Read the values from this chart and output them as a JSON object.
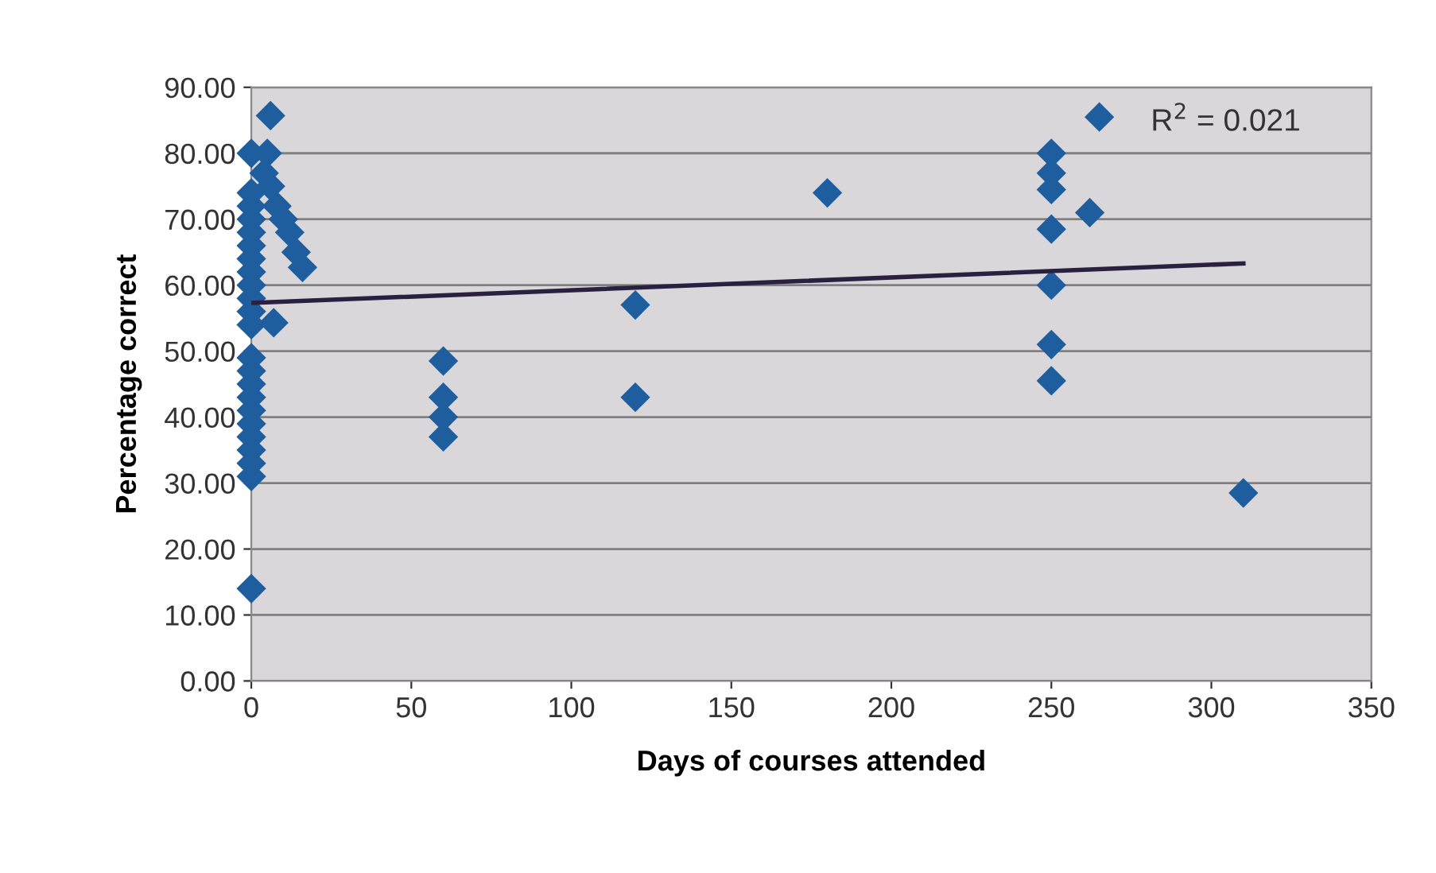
{
  "chart_data": {
    "type": "scatter",
    "xlabel": "Days of courses attended",
    "ylabel": "Percentage correct",
    "xlim": [
      0,
      350
    ],
    "xticks": [
      0,
      50,
      100,
      150,
      200,
      250,
      300,
      350
    ],
    "ylim": [
      0,
      90
    ],
    "yticks": [
      {
        "value": 0,
        "label": "0.00"
      },
      {
        "value": 10,
        "label": "10.00"
      },
      {
        "value": 20,
        "label": "20.00"
      },
      {
        "value": 30,
        "label": "30.00"
      },
      {
        "value": 40,
        "label": "40.00"
      },
      {
        "value": 50,
        "label": "50.00"
      },
      {
        "value": 60,
        "label": "60.00"
      },
      {
        "value": 70,
        "label": "70.00"
      },
      {
        "value": 80,
        "label": "80.00"
      },
      {
        "value": 90,
        "label": "90.00"
      }
    ],
    "grid": "y",
    "legend": false,
    "annotations": [
      "R$^{2}$ = 0.021"
    ],
    "series": [
      {
        "marker": "diamond",
        "color": "#1f5e9e",
        "x": [
          0,
          0,
          0,
          0,
          0,
          0,
          0,
          0,
          0,
          0,
          0,
          0,
          0,
          0,
          0,
          0,
          0,
          0,
          0,
          0,
          0,
          0,
          0,
          6,
          5,
          4,
          6,
          8,
          10,
          12,
          14,
          16,
          7,
          60,
          60,
          60,
          60,
          120,
          120,
          180,
          250,
          250,
          250,
          250,
          250,
          250,
          250,
          262,
          265,
          310
        ],
        "values": [
          80,
          74,
          72,
          70,
          68,
          66,
          64,
          62,
          60,
          58,
          56,
          54,
          49,
          47,
          45,
          43,
          41,
          39,
          37,
          35,
          33,
          31,
          14,
          85.7,
          80,
          77,
          75,
          72,
          70,
          68,
          65,
          62.7,
          54.3,
          48.5,
          43,
          40,
          37,
          57,
          43,
          74,
          80,
          77,
          74.5,
          68.5,
          60,
          51,
          45.5,
          71,
          85.5,
          28.5
        ]
      },
      {
        "type": "line",
        "color": "#2a2040",
        "x": [
          0,
          310
        ],
        "values": [
          57.3,
          63.3
        ]
      }
    ]
  }
}
